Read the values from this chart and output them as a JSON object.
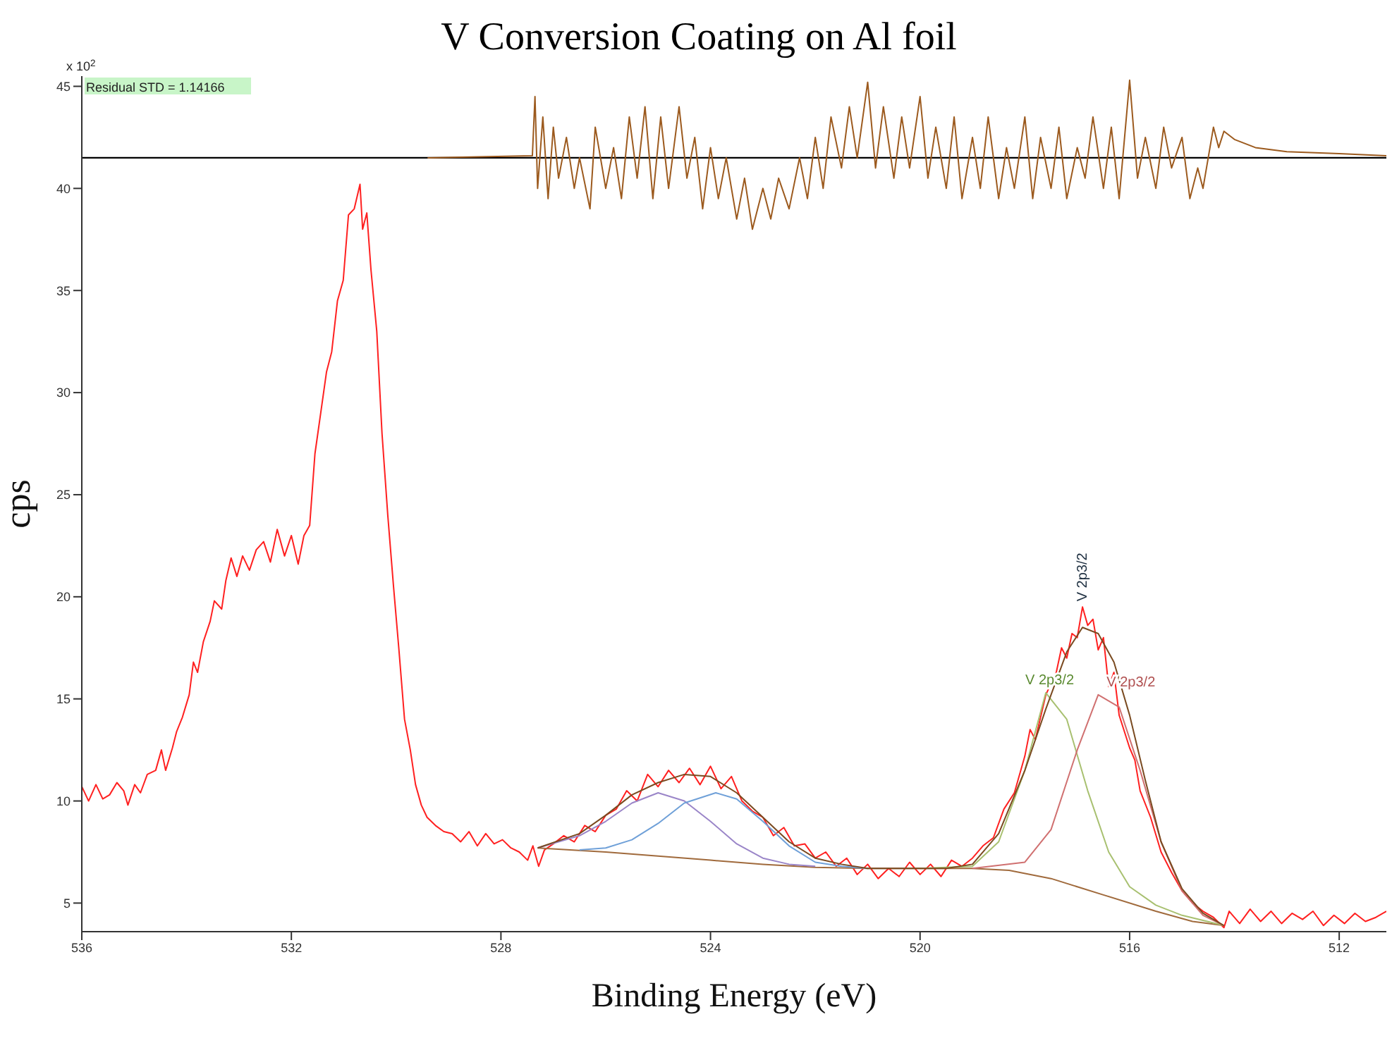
{
  "chart_data": {
    "type": "line",
    "title": "V Conversion Coating on Al foil",
    "xlabel": "Binding Energy (eV)",
    "ylabel": "cps",
    "xlim": [
      536,
      511.1
    ],
    "xticks": [
      536,
      532,
      528,
      524,
      520,
      516,
      512
    ],
    "ylim": [
      3.6,
      45.5
    ],
    "yticks": [
      5,
      10,
      15,
      20,
      25,
      30,
      35,
      40,
      45
    ],
    "marker": "none",
    "line_style": "solid",
    "grid": false,
    "ref_lines": [
      {
        "axis": "y",
        "value": 41.5,
        "color": "#000000"
      }
    ],
    "annotations": [
      "x 10$^{2}$",
      "Residual STD = 1.14166",
      {
        "text": "V 2p3/2",
        "x": 517.6,
        "y": 15.3
      },
      {
        "text": "V 2p3/2",
        "x": 516.6,
        "y": 15.2
      },
      {
        "text": "V 2p3/2",
        "x": 516.9,
        "y": 19.5
      }
    ],
    "series": [
      {
        "color": "#ff2020",
        "x": [
          536.0,
          535.87,
          535.73,
          535.6,
          535.47,
          535.33,
          535.2,
          535.12,
          534.99,
          534.88,
          534.75,
          534.59,
          534.48,
          534.4,
          534.27,
          534.19,
          534.08,
          533.95,
          533.87,
          533.79,
          533.68,
          533.55,
          533.47,
          533.33,
          533.25,
          533.15,
          533.04,
          532.93,
          532.8,
          532.67,
          532.53,
          532.4,
          532.27,
          532.13,
          532.0,
          531.87,
          531.76,
          531.65,
          531.55,
          531.44,
          531.33,
          531.23,
          531.12,
          531.01,
          530.91,
          530.8,
          530.69,
          530.64,
          530.56,
          530.48,
          530.37,
          530.27,
          530.16,
          530.05,
          529.95,
          529.84,
          529.73,
          529.63,
          529.52,
          529.41,
          529.25,
          529.09,
          528.93,
          528.77,
          528.61,
          528.45,
          528.29,
          528.13,
          527.97,
          527.81,
          527.65,
          527.49,
          527.39,
          527.28,
          527.17,
          527.0,
          526.8,
          526.6,
          526.4,
          526.2,
          526.0,
          525.8,
          525.6,
          525.4,
          525.2,
          525.0,
          524.8,
          524.6,
          524.4,
          524.2,
          524.0,
          523.8,
          523.6,
          523.4,
          523.2,
          523.0,
          522.8,
          522.6,
          522.4,
          522.2,
          522.0,
          521.8,
          521.6,
          521.4,
          521.2,
          521.0,
          520.8,
          520.6,
          520.4,
          520.2,
          520.0,
          519.8,
          519.6,
          519.4,
          519.2,
          519.0,
          518.8,
          518.6,
          518.4,
          518.2,
          518.0,
          517.9,
          517.8,
          517.6,
          517.4,
          517.3,
          517.2,
          517.1,
          517.0,
          516.9,
          516.8,
          516.7,
          516.6,
          516.5,
          516.4,
          516.3,
          516.2,
          516.0,
          515.9,
          515.8,
          515.6,
          515.4,
          515.2,
          515.0,
          514.8,
          514.6,
          514.4,
          514.2,
          514.1,
          513.9,
          513.7,
          513.5,
          513.3,
          513.1,
          512.9,
          512.7,
          512.5,
          512.3,
          512.1,
          511.9,
          511.7,
          511.5,
          511.3,
          511.1
        ],
        "values": [
          10.7,
          10.0,
          10.8,
          10.1,
          10.3,
          10.9,
          10.5,
          9.8,
          10.8,
          10.4,
          11.3,
          11.5,
          12.5,
          11.5,
          12.6,
          13.4,
          14.1,
          15.2,
          16.8,
          16.3,
          17.8,
          18.8,
          19.8,
          19.4,
          20.8,
          21.9,
          21.0,
          22.0,
          21.3,
          22.3,
          22.7,
          21.7,
          23.3,
          22.0,
          23.0,
          21.6,
          23.0,
          23.5,
          27.0,
          29.0,
          31.0,
          32.0,
          34.5,
          35.5,
          38.7,
          39.0,
          40.2,
          38.0,
          38.8,
          36.0,
          33.0,
          28.0,
          24.0,
          20.5,
          17.5,
          14.0,
          12.5,
          10.8,
          9.8,
          9.2,
          8.8,
          8.5,
          8.4,
          8.0,
          8.5,
          7.8,
          8.4,
          7.9,
          8.1,
          7.7,
          7.5,
          7.1,
          7.8,
          6.8,
          7.6,
          7.9,
          8.3,
          8.0,
          8.8,
          8.5,
          9.3,
          9.6,
          10.5,
          10.0,
          11.3,
          10.7,
          11.5,
          10.9,
          11.6,
          10.8,
          11.7,
          10.6,
          11.2,
          10.0,
          9.5,
          9.2,
          8.3,
          8.7,
          7.8,
          7.9,
          7.2,
          7.5,
          6.8,
          7.2,
          6.4,
          6.9,
          6.2,
          6.7,
          6.3,
          7.0,
          6.4,
          6.9,
          6.3,
          7.1,
          6.8,
          7.2,
          7.8,
          8.2,
          9.6,
          10.4,
          12.2,
          13.5,
          13.0,
          15.2,
          16.3,
          17.5,
          17.0,
          18.2,
          18.0,
          19.5,
          18.6,
          18.9,
          17.4,
          18.0,
          15.6,
          16.3,
          14.2,
          12.6,
          12.0,
          10.5,
          9.2,
          7.5,
          6.5,
          5.6,
          5.0,
          4.6,
          4.3,
          3.8,
          4.6,
          4.0,
          4.7,
          4.1,
          4.6,
          4.0,
          4.5,
          4.2,
          4.6,
          3.9,
          4.4,
          4.0,
          4.5,
          4.1,
          4.3,
          4.6
        ]
      },
      {
        "color": "#a06a3c",
        "x": [
          527.3,
          526.0,
          525.0,
          524.0,
          523.0,
          522.0,
          521.0,
          519.0,
          518.3,
          517.5,
          516.5,
          515.5,
          514.8,
          514.2
        ],
        "values": [
          7.7,
          7.5,
          7.3,
          7.1,
          6.9,
          6.75,
          6.7,
          6.7,
          6.6,
          6.2,
          5.4,
          4.6,
          4.1,
          3.9
        ]
      },
      {
        "color": "#9a85c8",
        "x": [
          527.3,
          526.5,
          526.0,
          525.5,
          525.0,
          524.5,
          524.0,
          523.5,
          523.0,
          522.5,
          522.0
        ],
        "values": [
          7.7,
          8.3,
          9.0,
          9.9,
          10.4,
          10.0,
          9.0,
          7.9,
          7.2,
          6.9,
          6.8
        ]
      },
      {
        "color": "#6fa0d8",
        "x": [
          526.5,
          526.0,
          525.5,
          525.0,
          524.5,
          523.9,
          523.5,
          523.0,
          522.5,
          522.0,
          521.5,
          521.0
        ],
        "values": [
          7.6,
          7.7,
          8.1,
          8.9,
          9.9,
          10.4,
          10.1,
          9.0,
          7.8,
          7.0,
          6.8,
          6.7
        ]
      },
      {
        "color": "#a8c070",
        "x": [
          520.0,
          519.0,
          518.5,
          518.0,
          517.6,
          517.2,
          516.8,
          516.4,
          516.0,
          515.5,
          515.0,
          514.2
        ],
        "values": [
          6.7,
          6.8,
          8.0,
          11.5,
          15.3,
          14.0,
          10.5,
          7.5,
          5.8,
          4.9,
          4.4,
          3.9
        ]
      },
      {
        "color": "#d07070",
        "x": [
          519.0,
          518.0,
          517.5,
          517.0,
          516.6,
          516.2,
          515.8,
          515.4,
          515.0,
          514.6,
          514.2
        ],
        "values": [
          6.7,
          7.0,
          8.6,
          12.5,
          15.2,
          14.6,
          11.5,
          8.0,
          5.6,
          4.4,
          3.9
        ]
      },
      {
        "color": "#7a4a20",
        "x": [
          527.3,
          526.5,
          526.0,
          525.5,
          525.0,
          524.5,
          524.0,
          523.5,
          523.0,
          522.5,
          522.0,
          521.5,
          521.0,
          519.5,
          519.0,
          518.5,
          518.0,
          517.6,
          517.2,
          516.9,
          516.6,
          516.3,
          516.0,
          515.7,
          515.4,
          515.0,
          514.6,
          514.2
        ],
        "values": [
          7.7,
          8.4,
          9.3,
          10.3,
          10.9,
          11.3,
          11.2,
          10.4,
          9.2,
          8.0,
          7.2,
          6.9,
          6.7,
          6.7,
          6.9,
          8.4,
          11.5,
          14.5,
          17.3,
          18.5,
          18.2,
          16.8,
          14.2,
          11.0,
          8.0,
          5.7,
          4.5,
          3.9
        ]
      },
      {
        "color": "#9c5a1e",
        "x": [
          529.4,
          527.4,
          527.35,
          527.3,
          527.2,
          527.1,
          527.0,
          526.9,
          526.75,
          526.6,
          526.5,
          526.3,
          526.2,
          526.0,
          525.85,
          525.7,
          525.55,
          525.4,
          525.25,
          525.1,
          524.95,
          524.8,
          524.6,
          524.45,
          524.3,
          524.15,
          524.0,
          523.85,
          523.7,
          523.5,
          523.35,
          523.2,
          523.0,
          522.85,
          522.7,
          522.5,
          522.3,
          522.15,
          522.0,
          521.85,
          521.7,
          521.5,
          521.35,
          521.2,
          521.0,
          520.85,
          520.7,
          520.5,
          520.35,
          520.2,
          520.0,
          519.85,
          519.7,
          519.5,
          519.35,
          519.2,
          519.0,
          518.85,
          518.7,
          518.5,
          518.35,
          518.2,
          518.0,
          517.85,
          517.7,
          517.5,
          517.35,
          517.2,
          517.0,
          516.85,
          516.7,
          516.5,
          516.35,
          516.2,
          516.0,
          515.85,
          515.7,
          515.5,
          515.35,
          515.2,
          515.0,
          514.85,
          514.7,
          514.6,
          514.5,
          514.4,
          514.3,
          514.2,
          514.0,
          513.6,
          513.0,
          512.0,
          511.1
        ],
        "values": [
          41.5,
          41.6,
          44.5,
          40.0,
          43.5,
          39.5,
          43.0,
          40.5,
          42.5,
          40.0,
          41.5,
          39.0,
          43.0,
          40.0,
          42.0,
          39.5,
          43.5,
          40.5,
          44.0,
          39.5,
          43.5,
          40.0,
          44.0,
          40.5,
          42.5,
          39.0,
          42.0,
          39.5,
          41.5,
          38.5,
          40.5,
          38.0,
          40.0,
          38.5,
          40.5,
          39.0,
          41.5,
          39.5,
          42.5,
          40.0,
          43.5,
          41.0,
          44.0,
          41.5,
          45.2,
          41.0,
          44.0,
          40.5,
          43.5,
          41.0,
          44.5,
          40.5,
          43.0,
          40.0,
          43.5,
          39.5,
          42.5,
          40.0,
          43.5,
          39.5,
          42.0,
          40.0,
          43.5,
          39.5,
          42.5,
          40.0,
          43.0,
          39.5,
          42.0,
          40.5,
          43.5,
          40.0,
          43.0,
          39.5,
          45.3,
          40.5,
          42.5,
          40.0,
          43.0,
          41.0,
          42.5,
          39.5,
          41.0,
          40.0,
          41.5,
          43.0,
          42.0,
          42.8,
          42.4,
          42.0,
          41.8,
          41.7,
          41.6
        ]
      }
    ]
  }
}
